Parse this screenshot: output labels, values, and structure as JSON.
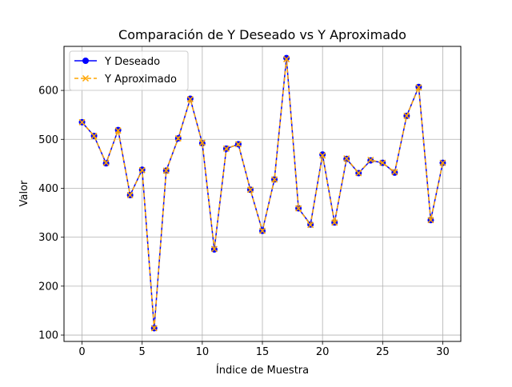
{
  "chart_data": {
    "type": "line",
    "title": "Comparación de Y Deseado vs Y Aproximado",
    "xlabel": "Índice de Muestra",
    "ylabel": "Valor",
    "xlim": [
      -1.5,
      31.5
    ],
    "ylim": [
      87,
      690
    ],
    "x_ticks": [
      0,
      5,
      10,
      15,
      20,
      25,
      30
    ],
    "y_ticks": [
      100,
      200,
      300,
      400,
      500,
      600
    ],
    "grid": true,
    "legend_position": "top-left",
    "x": [
      0,
      1,
      2,
      3,
      4,
      5,
      6,
      7,
      8,
      9,
      10,
      11,
      12,
      13,
      14,
      15,
      16,
      17,
      18,
      19,
      20,
      21,
      22,
      23,
      24,
      25,
      26,
      27,
      28,
      29,
      30
    ],
    "series": [
      {
        "name": "Y Deseado",
        "color": "#0000ff",
        "marker": "circle",
        "line_style": "solid",
        "values": [
          535,
          507,
          451,
          519,
          386,
          438,
          114,
          436,
          502,
          583,
          492,
          275,
          481,
          490,
          397,
          313,
          418,
          666,
          359,
          326,
          469,
          330,
          460,
          431,
          457,
          452,
          432,
          548,
          607,
          335,
          452
        ]
      },
      {
        "name": "Y Aproximado",
        "color": "#ffa500",
        "marker": "x",
        "line_style": "dashed",
        "values": [
          535,
          507,
          452,
          518,
          386,
          437,
          114,
          436,
          502,
          582,
          493,
          276,
          481,
          490,
          397,
          313,
          418,
          664,
          359,
          325,
          467,
          330,
          461,
          431,
          458,
          452,
          433,
          548,
          606,
          335,
          452
        ]
      }
    ]
  }
}
